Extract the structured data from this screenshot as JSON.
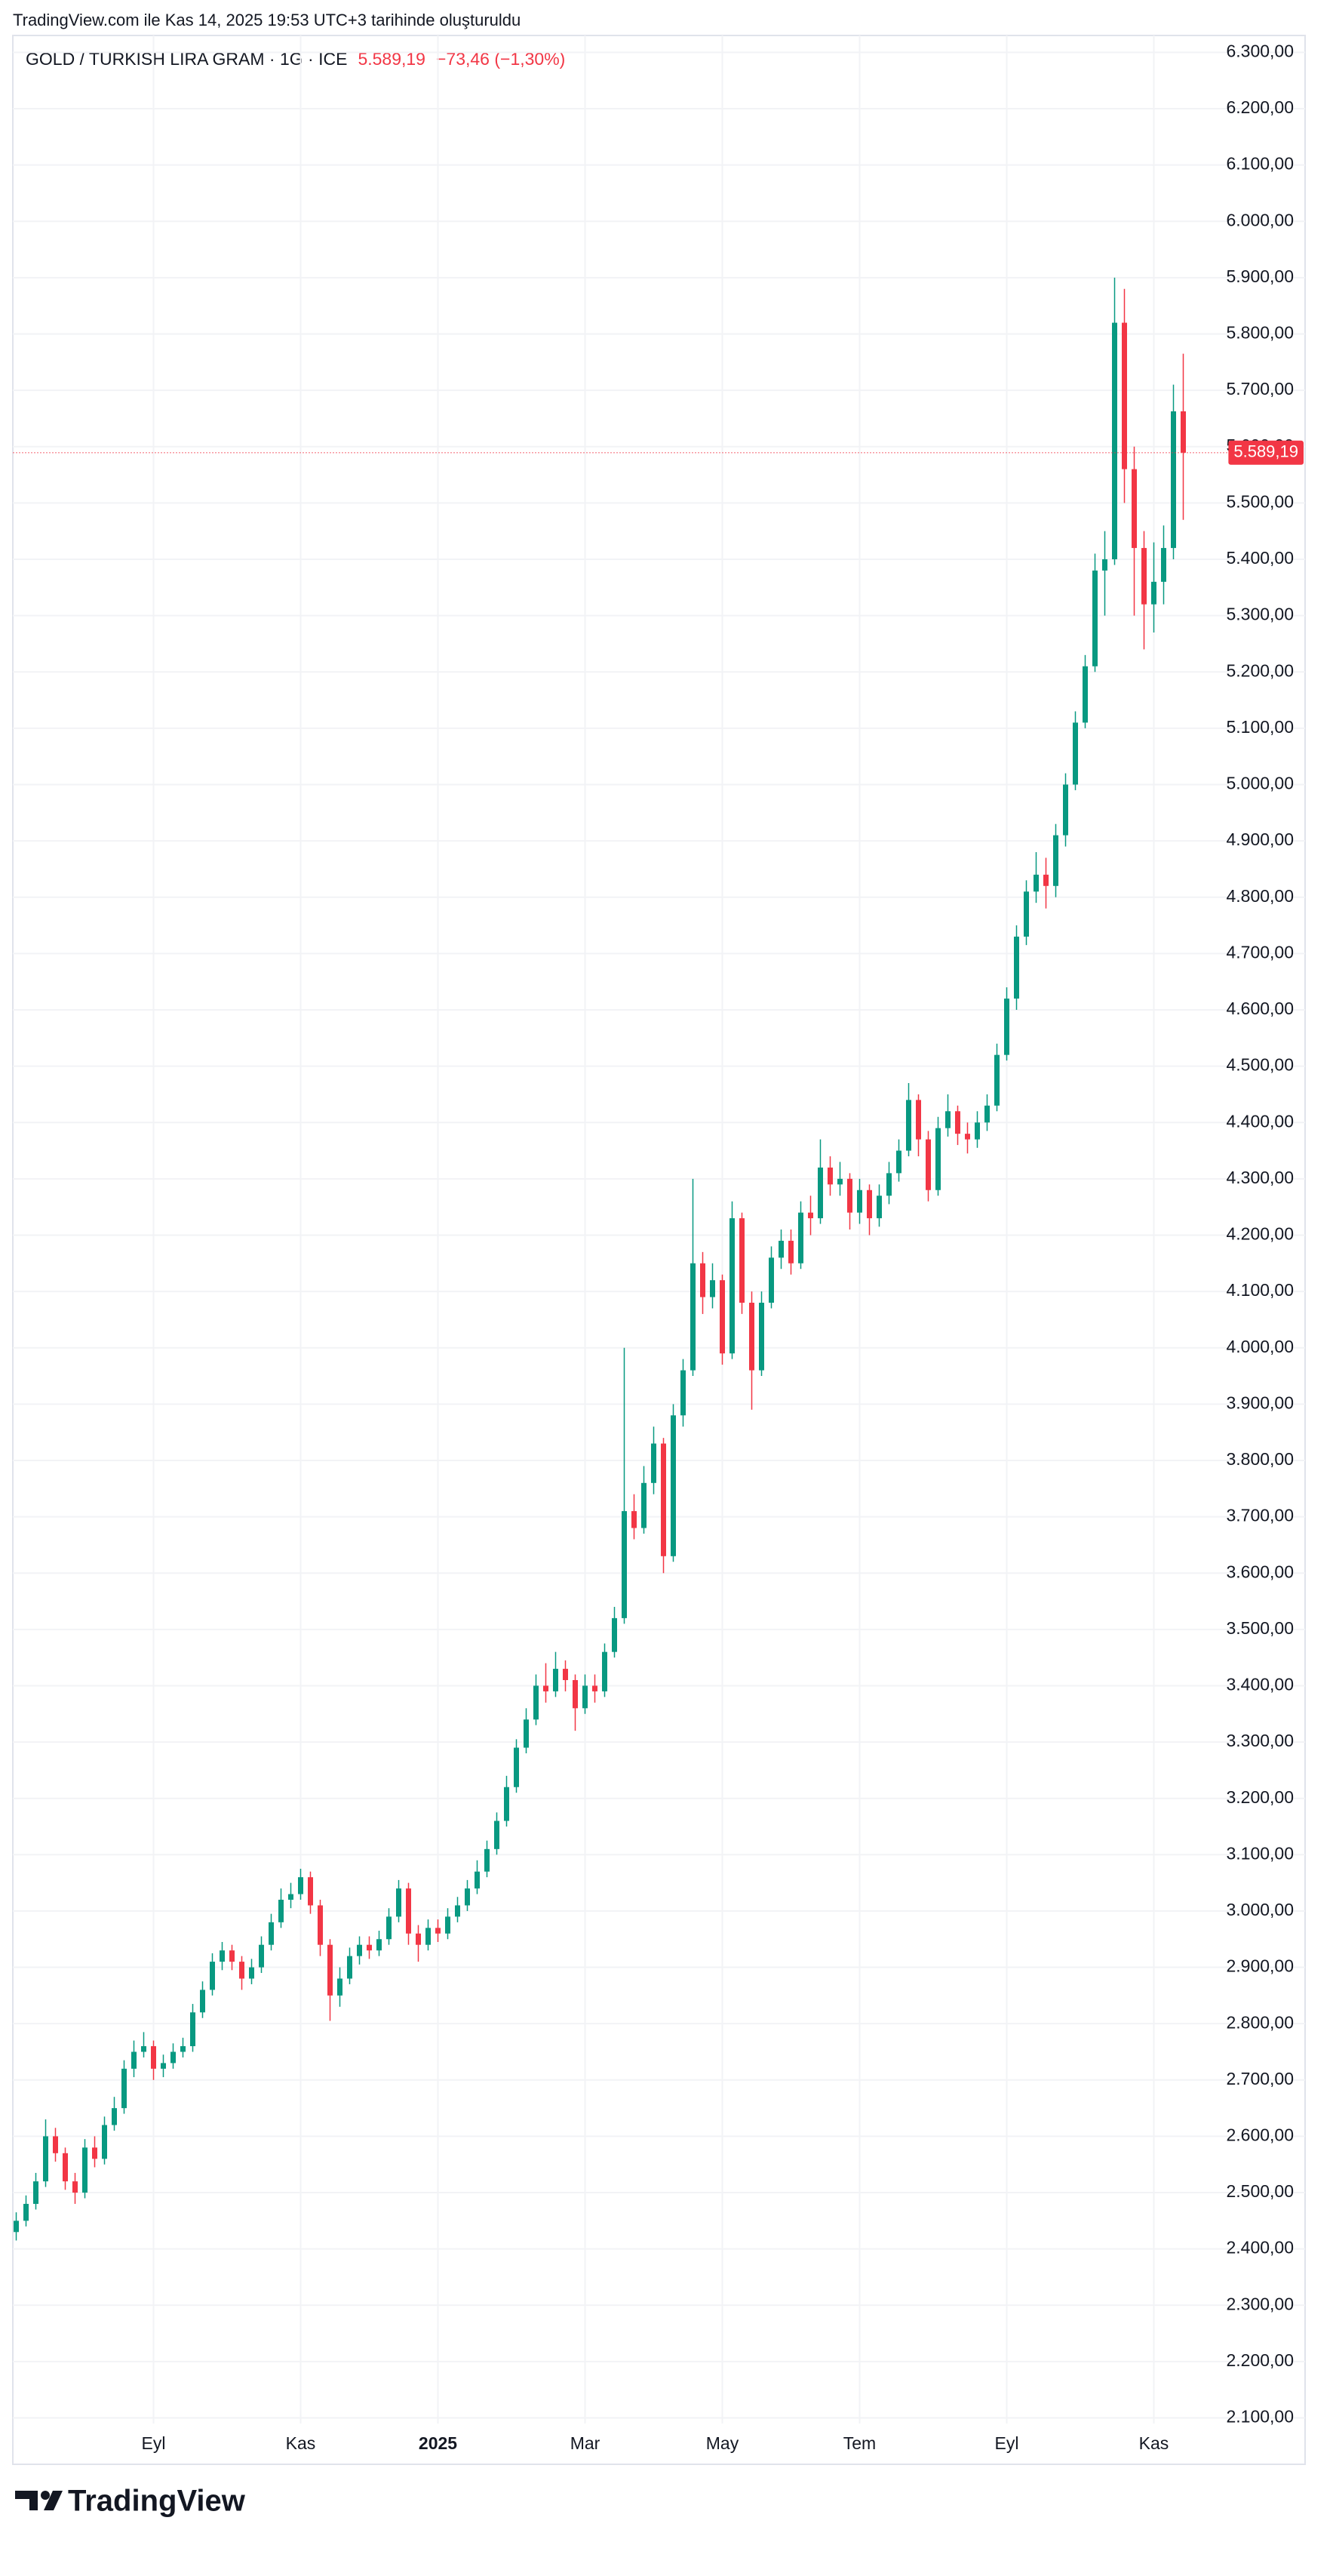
{
  "header": "TradingView.com ile Kas 14, 2025 19:53 UTC+3 tarihinde oluşturuldu",
  "logo": "TradingView",
  "chart_data": {
    "type": "candlestick",
    "title": "GOLD / TURKISH LIRA GRAM · 1G · ICE",
    "price_label": "5.589,19",
    "change_label": "−73,46 (−1,30%)",
    "up_color": "#089981",
    "down_color": "#f23645",
    "grid": true,
    "categories": [
      null,
      null,
      null,
      null,
      null,
      null,
      null,
      null,
      null,
      null,
      null,
      null,
      null,
      null,
      "Eyl",
      null,
      null,
      null,
      null,
      null,
      null,
      null,
      null,
      null,
      null,
      null,
      null,
      null,
      null,
      "Kas",
      null,
      null,
      null,
      null,
      null,
      null,
      null,
      null,
      null,
      null,
      null,
      null,
      null,
      "2025",
      null,
      null,
      null,
      null,
      null,
      null,
      null,
      null,
      null,
      null,
      null,
      null,
      null,
      null,
      "Mar",
      null,
      null,
      null,
      null,
      null,
      null,
      null,
      null,
      null,
      null,
      null,
      null,
      null,
      "May",
      null,
      null,
      null,
      null,
      null,
      null,
      null,
      null,
      null,
      null,
      null,
      null,
      null,
      "Tem",
      null,
      null,
      null,
      null,
      null,
      null,
      null,
      null,
      null,
      null,
      null,
      null,
      null,
      null,
      "Eyl",
      null,
      null,
      null,
      null,
      null,
      null,
      null,
      null,
      null,
      null,
      null,
      null,
      null,
      null,
      "Kas",
      null,
      null,
      null
    ],
    "open": [
      2430,
      2450,
      2480,
      2520,
      2600,
      2570,
      2520,
      2500,
      2580,
      2560,
      2620,
      2650,
      2720,
      2750,
      2760,
      2720,
      2730,
      2750,
      2760,
      2820,
      2860,
      2910,
      2930,
      2910,
      2880,
      2900,
      2940,
      2980,
      3020,
      3030,
      3060,
      3010,
      2940,
      2850,
      2880,
      2920,
      2940,
      2930,
      2950,
      2990,
      3040,
      2960,
      2940,
      2970,
      2960,
      2990,
      3010,
      3040,
      3070,
      3110,
      3160,
      3220,
      3290,
      3340,
      3400,
      3390,
      3430,
      3410,
      3360,
      3400,
      3390,
      3460,
      3520,
      3710,
      3680,
      3760,
      3830,
      3630,
      3880,
      3960,
      4150,
      4090,
      4120,
      3990,
      4230,
      4080,
      3960,
      4080,
      4160,
      4190,
      4150,
      4240,
      4230,
      4320,
      4290,
      4300,
      4240,
      4280,
      4230,
      4270,
      4310,
      4350,
      4440,
      4370,
      4280,
      4390,
      4420,
      4380,
      4370,
      4400,
      4430,
      4520,
      4620,
      4730,
      4810,
      4840,
      4820,
      4910,
      5000,
      5110,
      5210,
      5380,
      5400,
      5820,
      5560,
      5420,
      5320,
      5360,
      5420,
      5662.65
    ],
    "high": [
      2465,
      2495,
      2535,
      2630,
      2615,
      2580,
      2535,
      2595,
      2600,
      2635,
      2670,
      2735,
      2770,
      2785,
      2770,
      2745,
      2765,
      2775,
      2835,
      2875,
      2925,
      2945,
      2940,
      2920,
      2915,
      2955,
      2995,
      3040,
      3050,
      3075,
      3070,
      3020,
      2950,
      2900,
      2935,
      2955,
      2955,
      2965,
      3005,
      3055,
      3050,
      2975,
      2985,
      2985,
      3005,
      3025,
      3055,
      3090,
      3125,
      3175,
      3240,
      3305,
      3360,
      3420,
      3440,
      3460,
      3445,
      3420,
      3420,
      3420,
      3475,
      3540,
      4000,
      3740,
      3790,
      3860,
      3840,
      3900,
      3980,
      4300,
      4170,
      4150,
      4130,
      4260,
      4240,
      4100,
      4100,
      4180,
      4210,
      4210,
      4260,
      4270,
      4370,
      4340,
      4330,
      4310,
      4300,
      4290,
      4290,
      4330,
      4370,
      4470,
      4450,
      4385,
      4410,
      4450,
      4430,
      4400,
      4420,
      4450,
      4540,
      4640,
      4750,
      4830,
      4880,
      4870,
      4930,
      5020,
      5130,
      5230,
      5410,
      5450,
      5900,
      5880,
      5600,
      5450,
      5430,
      5460,
      5710,
      5765
    ],
    "low": [
      2415,
      2440,
      2470,
      2510,
      2555,
      2505,
      2480,
      2490,
      2545,
      2550,
      2610,
      2640,
      2705,
      2740,
      2700,
      2705,
      2720,
      2740,
      2750,
      2810,
      2850,
      2895,
      2895,
      2860,
      2870,
      2890,
      2930,
      2970,
      3005,
      3020,
      2995,
      2920,
      2805,
      2830,
      2870,
      2905,
      2915,
      2920,
      2940,
      2980,
      2940,
      2910,
      2930,
      2945,
      2950,
      2980,
      3000,
      3030,
      3060,
      3100,
      3150,
      3210,
      3280,
      3330,
      3370,
      3380,
      3390,
      3320,
      3350,
      3370,
      3380,
      3450,
      3510,
      3660,
      3670,
      3740,
      3600,
      3620,
      3860,
      3950,
      4060,
      4070,
      3970,
      3980,
      4060,
      3890,
      3950,
      4070,
      4140,
      4130,
      4140,
      4200,
      4220,
      4270,
      4270,
      4210,
      4220,
      4200,
      4215,
      4255,
      4295,
      4340,
      4340,
      4260,
      4270,
      4375,
      4360,
      4345,
      4355,
      4385,
      4420,
      4510,
      4600,
      4715,
      4790,
      4780,
      4800,
      4890,
      4990,
      5100,
      5200,
      5300,
      5390,
      5500,
      5300,
      5240,
      5270,
      5320,
      5400,
      5470
    ],
    "close": [
      2450,
      2480,
      2520,
      2600,
      2570,
      2520,
      2500,
      2580,
      2560,
      2620,
      2650,
      2720,
      2750,
      2760,
      2720,
      2730,
      2750,
      2760,
      2820,
      2860,
      2910,
      2930,
      2910,
      2880,
      2900,
      2940,
      2980,
      3020,
      3030,
      3060,
      3010,
      2940,
      2850,
      2880,
      2920,
      2940,
      2930,
      2950,
      2990,
      3040,
      2960,
      2940,
      2970,
      2960,
      2990,
      3010,
      3040,
      3070,
      3110,
      3160,
      3220,
      3290,
      3340,
      3400,
      3390,
      3430,
      3410,
      3360,
      3400,
      3390,
      3460,
      3520,
      3710,
      3680,
      3760,
      3830,
      3630,
      3880,
      3960,
      4150,
      4090,
      4120,
      3990,
      4230,
      4080,
      3960,
      4080,
      4160,
      4190,
      4150,
      4240,
      4230,
      4320,
      4290,
      4300,
      4240,
      4280,
      4230,
      4270,
      4310,
      4350,
      4440,
      4370,
      4280,
      4390,
      4420,
      4380,
      4370,
      4400,
      4430,
      4520,
      4620,
      4730,
      4810,
      4840,
      4820,
      4910,
      5000,
      5110,
      5210,
      5380,
      5400,
      5820,
      5560,
      5420,
      5320,
      5360,
      5420,
      5662.65,
      5589.19
    ],
    "ylim": [
      2090,
      6330
    ],
    "yticks": [
      {
        "value": 2100,
        "label": "2.100,00"
      },
      {
        "value": 2200,
        "label": "2.200,00"
      },
      {
        "value": 2300,
        "label": "2.300,00"
      },
      {
        "value": 2400,
        "label": "2.400,00"
      },
      {
        "value": 2500,
        "label": "2.500,00"
      },
      {
        "value": 2600,
        "label": "2.600,00"
      },
      {
        "value": 2700,
        "label": "2.700,00"
      },
      {
        "value": 2800,
        "label": "2.800,00"
      },
      {
        "value": 2900,
        "label": "2.900,00"
      },
      {
        "value": 3000,
        "label": "3.000,00"
      },
      {
        "value": 3100,
        "label": "3.100,00"
      },
      {
        "value": 3200,
        "label": "3.200,00"
      },
      {
        "value": 3300,
        "label": "3.300,00"
      },
      {
        "value": 3400,
        "label": "3.400,00"
      },
      {
        "value": 3500,
        "label": "3.500,00"
      },
      {
        "value": 3600,
        "label": "3.600,00"
      },
      {
        "value": 3700,
        "label": "3.700,00"
      },
      {
        "value": 3800,
        "label": "3.800,00"
      },
      {
        "value": 3900,
        "label": "3.900,00"
      },
      {
        "value": 4000,
        "label": "4.000,00"
      },
      {
        "value": 4100,
        "label": "4.100,00"
      },
      {
        "value": 4200,
        "label": "4.200,00"
      },
      {
        "value": 4300,
        "label": "4.300,00"
      },
      {
        "value": 4400,
        "label": "4.400,00"
      },
      {
        "value": 4500,
        "label": "4.500,00"
      },
      {
        "value": 4600,
        "label": "4.600,00"
      },
      {
        "value": 4700,
        "label": "4.700,00"
      },
      {
        "value": 4800,
        "label": "4.800,00"
      },
      {
        "value": 4900,
        "label": "4.900,00"
      },
      {
        "value": 5000,
        "label": "5.000,00"
      },
      {
        "value": 5100,
        "label": "5.100,00"
      },
      {
        "value": 5200,
        "label": "5.200,00"
      },
      {
        "value": 5300,
        "label": "5.300,00"
      },
      {
        "value": 5400,
        "label": "5.400,00"
      },
      {
        "value": 5500,
        "label": "5.500,00"
      },
      {
        "value": 5600,
        "label": "5.600,00"
      },
      {
        "value": 5700,
        "label": "5.700,00"
      },
      {
        "value": 5800,
        "label": "5.800,00"
      },
      {
        "value": 5900,
        "label": "5.900,00"
      },
      {
        "value": 6000,
        "label": "6.000,00"
      },
      {
        "value": 6100,
        "label": "6.100,00"
      },
      {
        "value": 6200,
        "label": "6.200,00"
      },
      {
        "value": 6300,
        "label": "6.300,00"
      }
    ]
  }
}
